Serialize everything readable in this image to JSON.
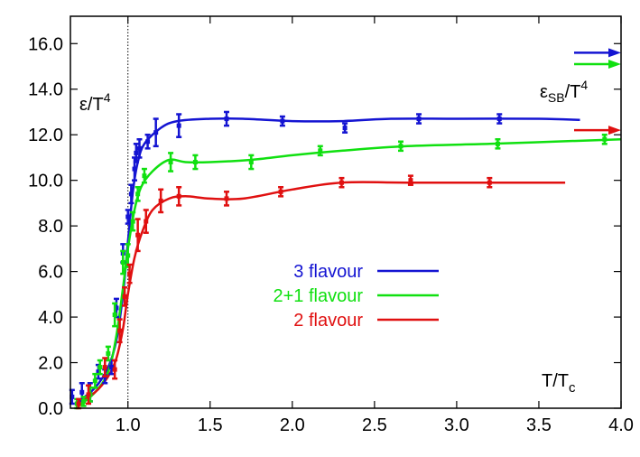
{
  "chart_data": {
    "type": "line",
    "xlim": [
      0.65,
      4.0
    ],
    "ylim": [
      0,
      17.2
    ],
    "xticks": [
      "1.0",
      "1.5",
      "2.0",
      "2.5",
      "3.0",
      "3.5",
      "4.0"
    ],
    "yticks": [
      "0.0",
      "2.0",
      "4.0",
      "6.0",
      "8.0",
      "10.0",
      "12.0",
      "14.0",
      "16.0"
    ],
    "ylabel": {
      "main": "ε/T",
      "sup": "4"
    },
    "xlabel": {
      "main": "T/T",
      "sub": "c"
    },
    "sb_label": {
      "main": "ε",
      "sub": "SB",
      "mid": "/T",
      "sup": "4"
    },
    "tc_line": 1.0,
    "series": [
      {
        "name": "3 flavour",
        "color": "#1414d2",
        "sb_limit": 15.6,
        "curve": [
          [
            0.7,
            0.3
          ],
          [
            0.8,
            0.9
          ],
          [
            0.88,
            1.8
          ],
          [
            0.93,
            3.0
          ],
          [
            0.97,
            5.0
          ],
          [
            1.0,
            7.3
          ],
          [
            1.03,
            9.5
          ],
          [
            1.06,
            10.8
          ],
          [
            1.1,
            11.6
          ],
          [
            1.2,
            12.3
          ],
          [
            1.3,
            12.6
          ],
          [
            1.5,
            12.7
          ],
          [
            1.7,
            12.7
          ],
          [
            2.0,
            12.6
          ],
          [
            2.3,
            12.6
          ],
          [
            2.6,
            12.7
          ],
          [
            3.0,
            12.7
          ],
          [
            3.5,
            12.7
          ],
          [
            3.75,
            12.65
          ]
        ],
        "points": [
          [
            0.66,
            0.5,
            0.3
          ],
          [
            0.72,
            0.7,
            0.4
          ],
          [
            0.77,
            0.7,
            0.4
          ],
          [
            0.82,
            1.6,
            0.3
          ],
          [
            0.86,
            1.4,
            0.3
          ],
          [
            0.9,
            1.8,
            0.3
          ],
          [
            0.93,
            4.4,
            0.4
          ],
          [
            0.97,
            6.8,
            0.4
          ],
          [
            1.0,
            8.4,
            0.3
          ],
          [
            1.02,
            9.4,
            0.4
          ],
          [
            1.04,
            10.5,
            0.5
          ],
          [
            1.05,
            11.2,
            0.4
          ],
          [
            1.07,
            11.4,
            0.4
          ],
          [
            1.12,
            11.7,
            0.3
          ],
          [
            1.17,
            12.1,
            0.6
          ],
          [
            1.31,
            12.4,
            0.5
          ],
          [
            1.6,
            12.7,
            0.3
          ],
          [
            1.94,
            12.6,
            0.2
          ],
          [
            2.32,
            12.3,
            0.2
          ],
          [
            2.77,
            12.7,
            0.2
          ],
          [
            3.26,
            12.7,
            0.2
          ]
        ]
      },
      {
        "name": "2+1 flavour",
        "color": "#10e010",
        "sb_limit": 15.1,
        "curve": [
          [
            0.7,
            0.1
          ],
          [
            0.8,
            0.7
          ],
          [
            0.88,
            1.6
          ],
          [
            0.93,
            3.2
          ],
          [
            0.97,
            5.3
          ],
          [
            1.0,
            7.0
          ],
          [
            1.04,
            8.7
          ],
          [
            1.08,
            9.7
          ],
          [
            1.15,
            10.4
          ],
          [
            1.25,
            10.9
          ],
          [
            1.35,
            10.8
          ],
          [
            1.5,
            10.8
          ],
          [
            1.75,
            10.9
          ],
          [
            2.0,
            11.1
          ],
          [
            2.3,
            11.3
          ],
          [
            2.7,
            11.5
          ],
          [
            3.2,
            11.6
          ],
          [
            3.6,
            11.7
          ],
          [
            4.0,
            11.8
          ]
        ],
        "points": [
          [
            0.69,
            0.2,
            0.2
          ],
          [
            0.73,
            0.3,
            0.2
          ],
          [
            0.77,
            0.6,
            0.3
          ],
          [
            0.8,
            1.2,
            0.3
          ],
          [
            0.83,
            1.8,
            0.3
          ],
          [
            0.88,
            2.4,
            0.3
          ],
          [
            0.92,
            4.1,
            0.5
          ],
          [
            0.97,
            6.4,
            0.5
          ],
          [
            1.0,
            6.7,
            0.5
          ],
          [
            1.03,
            8.2,
            0.4
          ],
          [
            1.06,
            9.4,
            0.3
          ],
          [
            1.1,
            10.2,
            0.3
          ],
          [
            1.26,
            10.8,
            0.4
          ],
          [
            1.41,
            10.8,
            0.3
          ],
          [
            1.75,
            10.8,
            0.3
          ],
          [
            2.17,
            11.3,
            0.2
          ],
          [
            2.66,
            11.5,
            0.2
          ],
          [
            3.25,
            11.6,
            0.2
          ],
          [
            3.9,
            11.8,
            0.2
          ]
        ]
      },
      {
        "name": "2 flavour",
        "color": "#e01010",
        "sb_limit": 12.2,
        "curve": [
          [
            0.7,
            0.3
          ],
          [
            0.8,
            0.7
          ],
          [
            0.88,
            1.4
          ],
          [
            0.93,
            2.2
          ],
          [
            0.97,
            3.5
          ],
          [
            1.0,
            5.0
          ],
          [
            1.04,
            6.6
          ],
          [
            1.09,
            7.8
          ],
          [
            1.15,
            8.7
          ],
          [
            1.25,
            9.2
          ],
          [
            1.35,
            9.3
          ],
          [
            1.5,
            9.2
          ],
          [
            1.7,
            9.2
          ],
          [
            2.0,
            9.6
          ],
          [
            2.3,
            9.9
          ],
          [
            2.7,
            9.9
          ],
          [
            3.2,
            9.9
          ],
          [
            3.66,
            9.9
          ]
        ],
        "points": [
          [
            0.7,
            0.2,
            0.2
          ],
          [
            0.76,
            0.6,
            0.4
          ],
          [
            0.86,
            1.8,
            0.4
          ],
          [
            0.92,
            1.7,
            0.4
          ],
          [
            0.95,
            3.4,
            0.5
          ],
          [
            0.98,
            4.9,
            0.4
          ],
          [
            1.01,
            5.9,
            0.4
          ],
          [
            1.06,
            7.6,
            0.7
          ],
          [
            1.11,
            8.2,
            0.5
          ],
          [
            1.2,
            9.1,
            0.5
          ],
          [
            1.31,
            9.3,
            0.4
          ],
          [
            1.6,
            9.2,
            0.3
          ],
          [
            1.93,
            9.5,
            0.2
          ],
          [
            2.3,
            9.9,
            0.2
          ],
          [
            2.72,
            10.0,
            0.2
          ],
          [
            3.2,
            9.9,
            0.2
          ]
        ]
      }
    ],
    "legend_position": "center"
  }
}
